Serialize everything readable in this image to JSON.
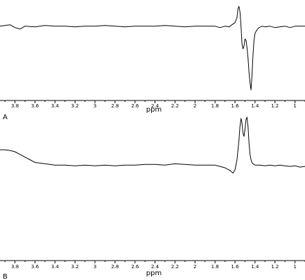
{
  "chart_data": [
    {
      "type": "line",
      "panel_label": "A",
      "xlabel": "ppm",
      "ylabel": "",
      "title": "",
      "x_direction": "decreasing-left-to-right",
      "xlim": [
        3.95,
        0.9
      ],
      "ylim": [
        -1.0,
        0.35
      ],
      "grid": false,
      "tick_labels": [
        "3.8",
        "3.6",
        "3.4",
        "3.2",
        "3",
        "2.8",
        "2.6",
        "2.4",
        "2.2",
        "2",
        "1.8",
        "1.6",
        "1.4",
        "1.2",
        "1"
      ],
      "series": [
        {
          "x": [
            3.95,
            3.9,
            3.85,
            3.8,
            3.75,
            3.7,
            3.6,
            3.5,
            3.4,
            3.3,
            3.2,
            3.1,
            3.0,
            2.9,
            2.8,
            2.7,
            2.6,
            2.5,
            2.4,
            2.3,
            2.2,
            2.1,
            2.0,
            1.9,
            1.8,
            1.75,
            1.7,
            1.66,
            1.63,
            1.6,
            1.58,
            1.57,
            1.56,
            1.55,
            1.54,
            1.53,
            1.52,
            1.51,
            1.5,
            1.49,
            1.48,
            1.47,
            1.46,
            1.45,
            1.44,
            1.43,
            1.42,
            1.41,
            1.4,
            1.38,
            1.36,
            1.33,
            1.3,
            1.25,
            1.2,
            1.15,
            1.1,
            1.05,
            1.0,
            0.95,
            0.9
          ],
          "y": [
            0,
            0.01,
            0.02,
            -0.02,
            -0.04,
            0,
            -0.01,
            0.01,
            0,
            0,
            -0.01,
            0,
            0,
            0.01,
            0,
            -0.01,
            0,
            0,
            0,
            0.01,
            0,
            -0.01,
            0,
            0,
            0,
            -0.02,
            0,
            -0.01,
            0.02,
            0.05,
            0.12,
            0.25,
            0.28,
            0.2,
            0,
            -0.25,
            -0.32,
            -0.28,
            -0.18,
            -0.2,
            -0.3,
            -0.45,
            -0.65,
            -0.8,
            -0.9,
            -0.7,
            -0.4,
            -0.2,
            -0.1,
            -0.05,
            -0.02,
            0,
            -0.01,
            0,
            -0.02,
            -0.01,
            0,
            -0.02,
            0,
            0,
            0
          ]
        }
      ]
    },
    {
      "type": "line",
      "panel_label": "B",
      "xlabel": "ppm",
      "ylabel": "",
      "title": "",
      "x_direction": "decreasing-left-to-right",
      "xlim": [
        3.95,
        0.9
      ],
      "ylim": [
        -1.35,
        0.75
      ],
      "grid": false,
      "tick_labels": [
        "3.8",
        "3.6",
        "3.4",
        "3.2",
        "3",
        "2.8",
        "2.6",
        "2.4",
        "2.2",
        "2",
        "1.8",
        "1.6",
        "1.4",
        "1.2",
        "1"
      ],
      "series": [
        {
          "x": [
            3.95,
            3.9,
            3.85,
            3.8,
            3.75,
            3.7,
            3.65,
            3.6,
            3.5,
            3.4,
            3.3,
            3.2,
            3.1,
            3.0,
            2.9,
            2.8,
            2.7,
            2.6,
            2.5,
            2.4,
            2.3,
            2.2,
            2.1,
            2.0,
            1.9,
            1.8,
            1.75,
            1.7,
            1.65,
            1.62,
            1.6,
            1.58,
            1.56,
            1.55,
            1.54,
            1.53,
            1.52,
            1.51,
            1.5,
            1.49,
            1.48,
            1.47,
            1.46,
            1.45,
            1.44,
            1.43,
            1.42,
            1.41,
            1.4,
            1.38,
            1.35,
            1.3,
            1.25,
            1.2,
            1.15,
            1.1,
            1.05,
            1.0,
            0.95,
            0.9
          ],
          "y": [
            0.25,
            0.25,
            0.24,
            0.22,
            0.18,
            0.14,
            0.1,
            0.06,
            0.04,
            0.02,
            0.02,
            0.01,
            0.02,
            0.01,
            0.02,
            0.01,
            0.02,
            0.02,
            0.03,
            0.03,
            0.02,
            0.04,
            0.03,
            0.02,
            0.02,
            0.02,
            0.0,
            -0.02,
            -0.06,
            -0.1,
            -0.05,
            0.1,
            0.4,
            0.6,
            0.72,
            0.65,
            0.5,
            0.45,
            0.55,
            0.7,
            0.74,
            0.6,
            0.35,
            0.18,
            0.1,
            0.06,
            0.04,
            0.03,
            0.02,
            0.02,
            0.02,
            0.01,
            0.02,
            0.01,
            0.02,
            0.01,
            0.0,
            0.01,
            -0.01,
            0.0
          ]
        }
      ]
    }
  ]
}
